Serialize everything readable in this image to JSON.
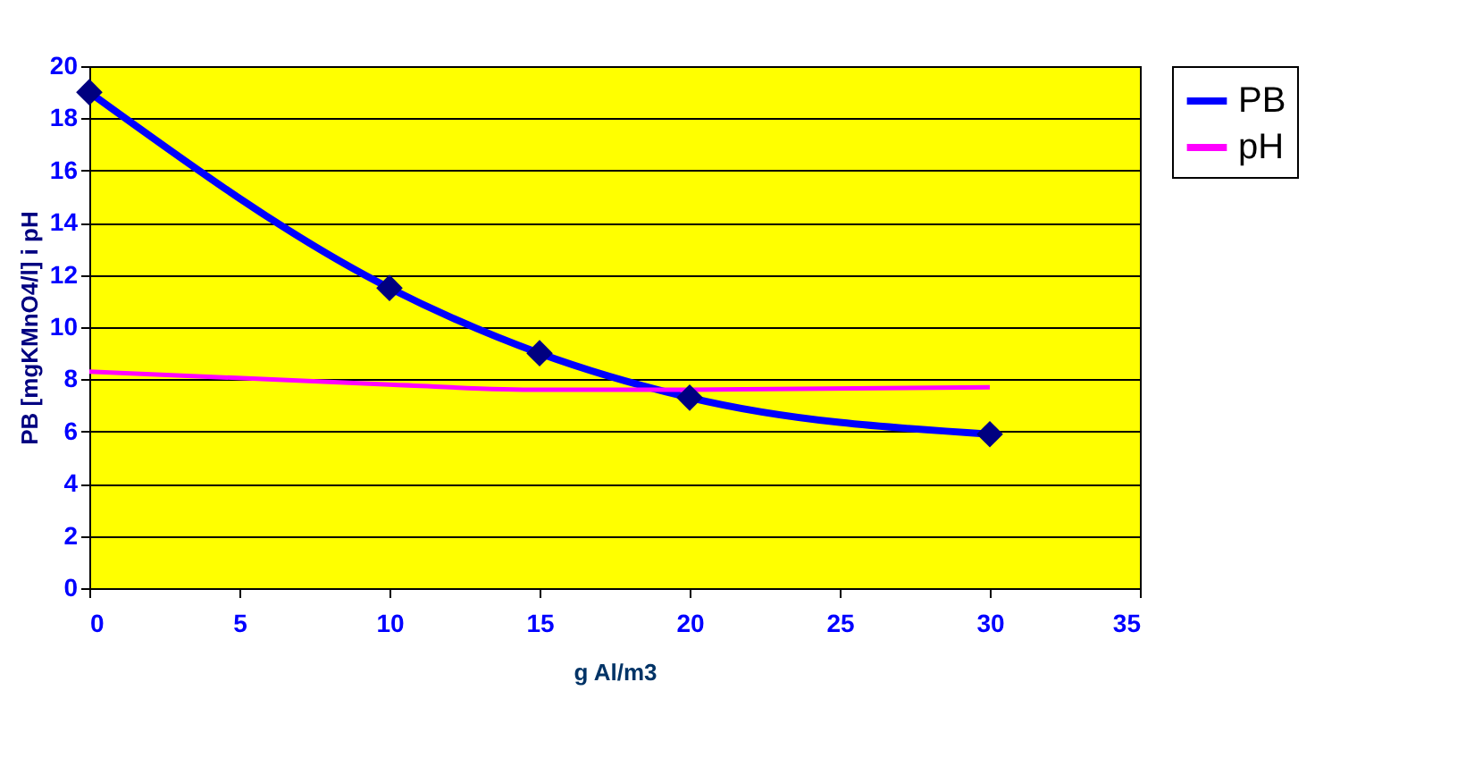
{
  "chart_data": {
    "type": "line",
    "xlabel": "g Al/m3",
    "ylabel": "PB [mgKMnO4/l] i pH",
    "x": [
      0,
      10,
      15,
      20,
      30
    ],
    "series": [
      {
        "name": "PB",
        "color": "#0000ff",
        "values": [
          19,
          11.5,
          9,
          7.3,
          5.9
        ],
        "marker": "diamond"
      },
      {
        "name": "pH",
        "color": "#ff00ff",
        "values": [
          8.3,
          7.8,
          7.6,
          7.6,
          7.7
        ],
        "marker": "none"
      }
    ],
    "xlim": [
      0,
      35
    ],
    "xticks": [
      0,
      5,
      10,
      15,
      20,
      25,
      30,
      35
    ],
    "ylim": [
      0,
      20
    ],
    "yticks": [
      0,
      2,
      4,
      6,
      8,
      10,
      12,
      14,
      16,
      18,
      20
    ],
    "grid": "y",
    "legend": "right"
  }
}
